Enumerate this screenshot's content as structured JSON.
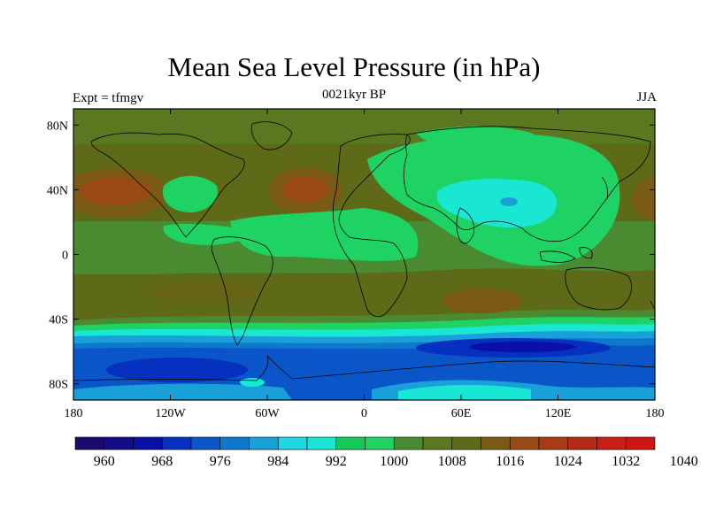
{
  "title": "Mean Sea Level Pressure (in hPa)",
  "subtitle": "0021kyr BP",
  "left_label": "Expt = tfmgv",
  "right_label": "JJA",
  "map": {
    "lon_range": [
      -180,
      180
    ],
    "lat_range": [
      -90,
      90
    ],
    "lon_ticks": [
      {
        "value": -180,
        "label": "180"
      },
      {
        "value": -120,
        "label": "120W"
      },
      {
        "value": -60,
        "label": "60W"
      },
      {
        "value": 0,
        "label": "0"
      },
      {
        "value": 60,
        "label": "60E"
      },
      {
        "value": 120,
        "label": "120E"
      },
      {
        "value": 180,
        "label": "180"
      }
    ],
    "lat_ticks": [
      {
        "value": 80,
        "label": "80N"
      },
      {
        "value": 40,
        "label": "40N"
      },
      {
        "value": 0,
        "label": "0"
      },
      {
        "value": -40,
        "label": "40S"
      },
      {
        "value": -80,
        "label": "80S"
      }
    ]
  },
  "colorbar": {
    "colors": [
      "#1a0a6b",
      "#140d8a",
      "#0a10a5",
      "#0530c0",
      "#0a55c8",
      "#0e78cc",
      "#1aa0d8",
      "#20d8e4",
      "#1ae6d4",
      "#14c85a",
      "#1ed264",
      "#4a8a30",
      "#5a7820",
      "#5e6a18",
      "#7a5a14",
      "#9a4a14",
      "#a83a14",
      "#b42a14",
      "#c81e14",
      "#d01414"
    ],
    "labels": [
      {
        "index": 1,
        "text": "960"
      },
      {
        "index": 3,
        "text": "968"
      },
      {
        "index": 5,
        "text": "976"
      },
      {
        "index": 7,
        "text": "984"
      },
      {
        "index": 9,
        "text": "992"
      },
      {
        "index": 11,
        "text": "1000"
      },
      {
        "index": 13,
        "text": "1008"
      },
      {
        "index": 15,
        "text": "1016"
      },
      {
        "index": 17,
        "text": "1024"
      },
      {
        "index": 19,
        "text": "1032"
      },
      {
        "index": 21,
        "text": "1040"
      }
    ]
  }
}
